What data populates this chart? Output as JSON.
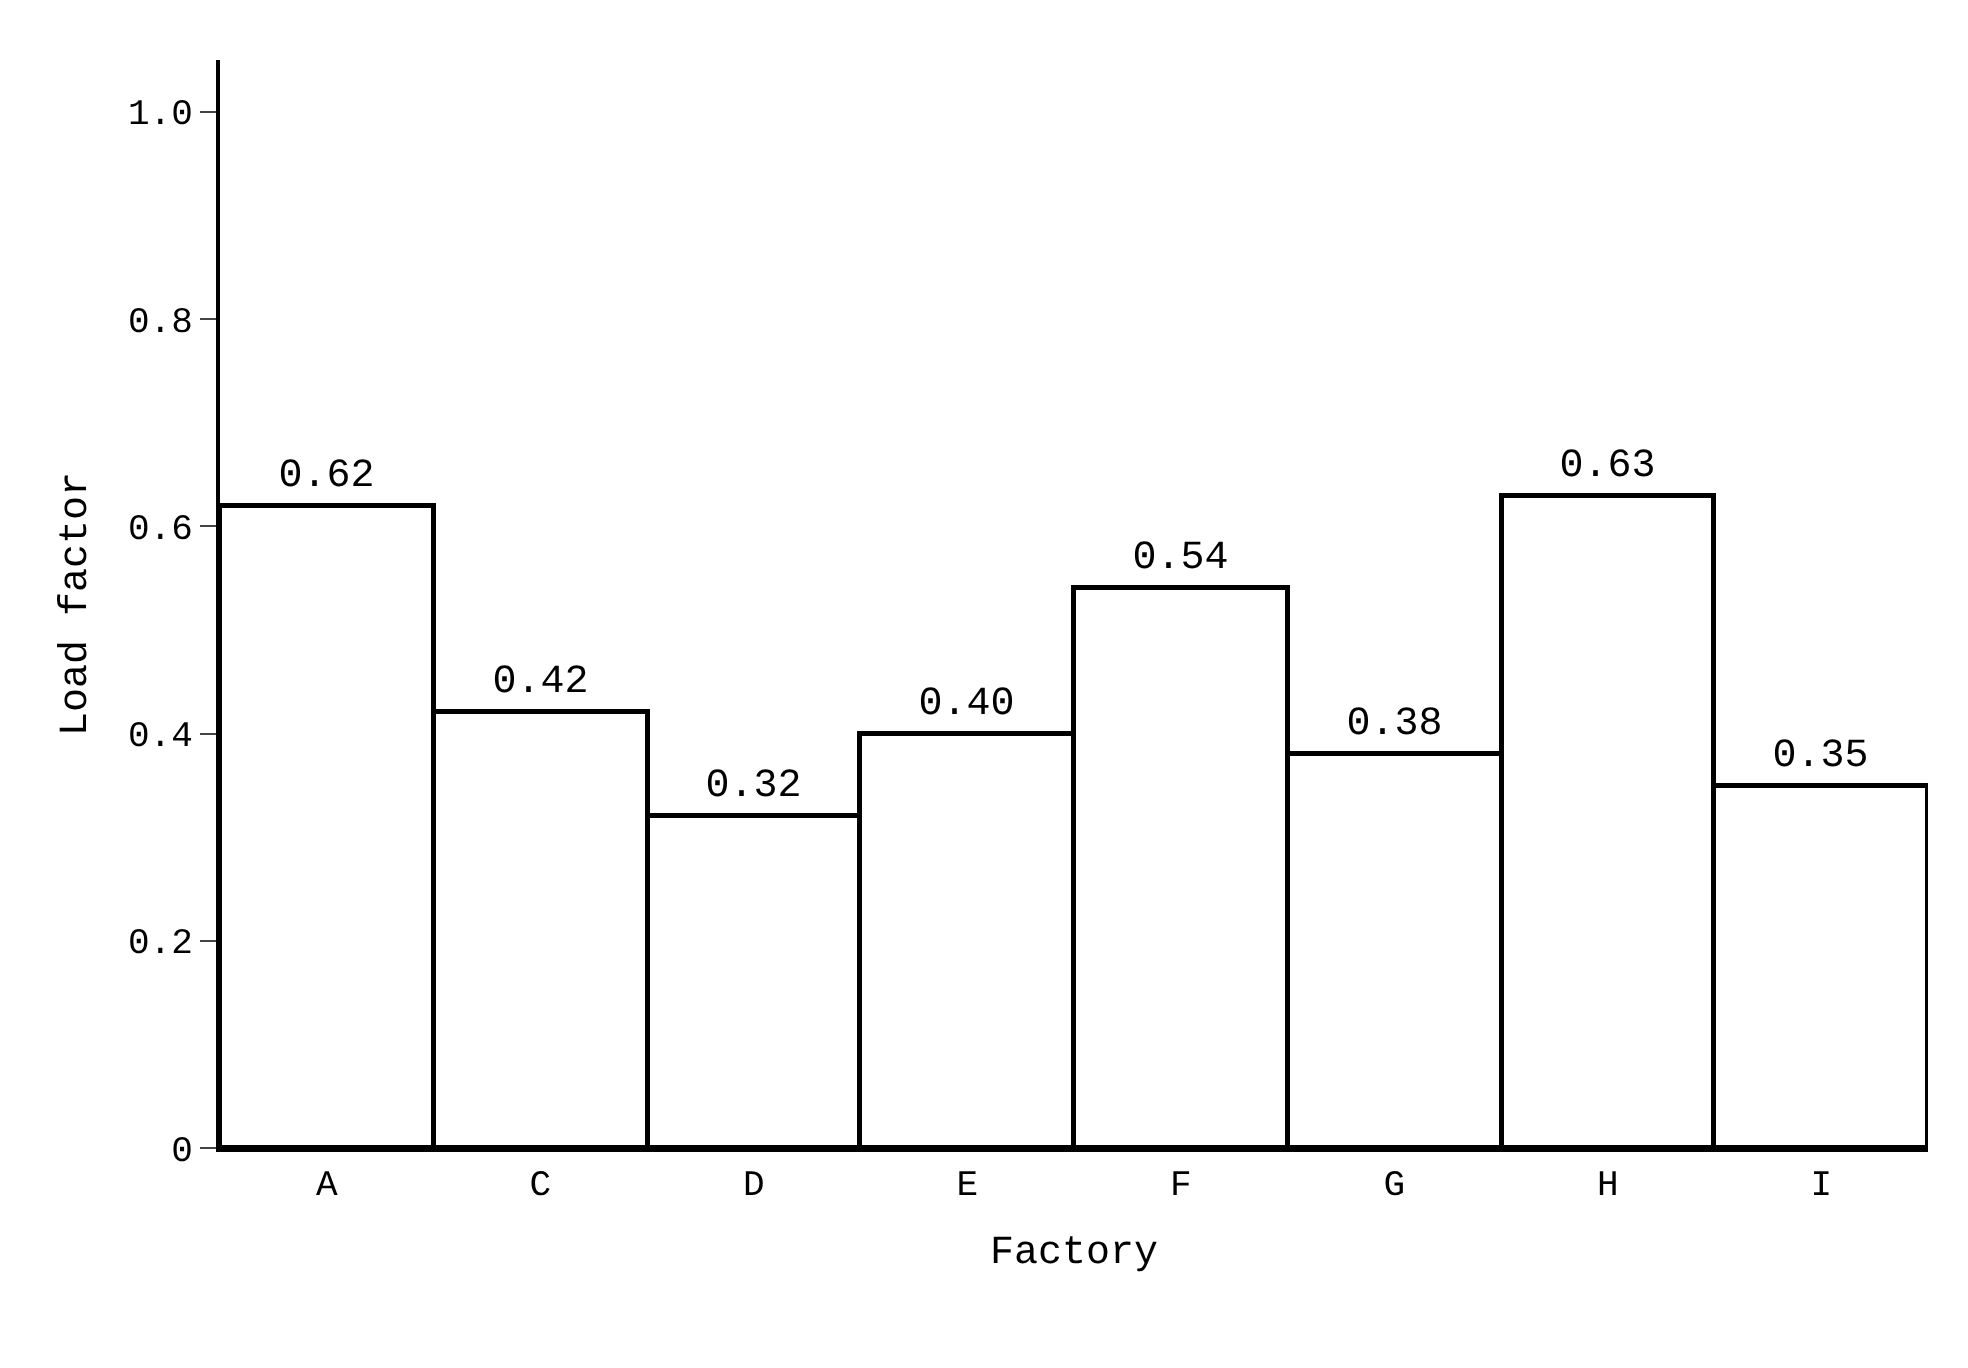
{
  "chart_data": {
    "type": "bar",
    "xlabel": "Factory",
    "ylabel": "Load factor",
    "categories": [
      "A",
      "C",
      "D",
      "E",
      "F",
      "G",
      "H",
      "I"
    ],
    "values": [
      0.62,
      0.42,
      0.32,
      0.4,
      0.54,
      0.38,
      0.63,
      0.35
    ],
    "color": "#ffffff",
    "ylim": [
      0,
      1.05
    ],
    "yticks": [
      0,
      {
        "value": 0.2,
        "label": "0.2"
      },
      {
        "value": 0.4,
        "label": "0.4"
      },
      {
        "value": 0.6,
        "label": "0.6"
      },
      {
        "value": 0.8,
        "label": "0.8"
      },
      {
        "value": 1.0,
        "label": "1.0"
      }
    ],
    "value_labels": [
      "0.62",
      "0.42",
      "0.32",
      "0.40",
      "0.54",
      "0.38",
      "0.63",
      "0.35"
    ]
  }
}
